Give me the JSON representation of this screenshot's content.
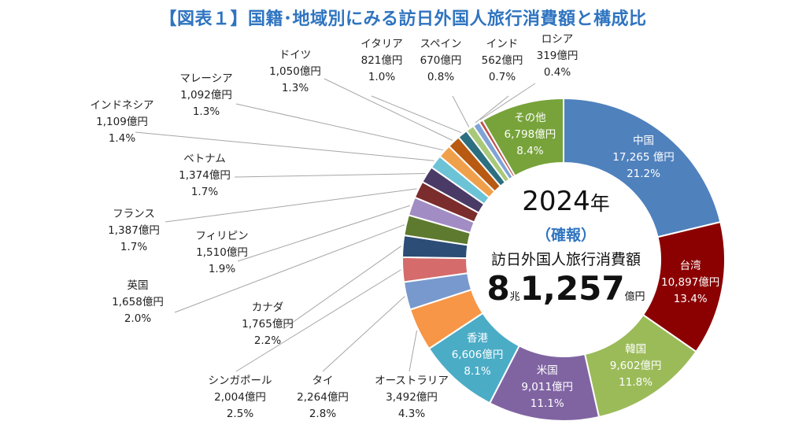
{
  "title": "【図表１】国籍･地域別にみる訪日外国人旅行消費額と構成比",
  "center": {
    "year": "2024",
    "year_unit": "年",
    "status": "（確報）",
    "label": "訪日外国人旅行消費額",
    "total_a": "8",
    "total_a_unit": "兆",
    "total_b": "1,257",
    "total_unit": "億円"
  },
  "chart_data": {
    "type": "pie",
    "title": "【図表１】国籍･地域別にみる訪日外国人旅行消費額と構成比",
    "style": "donut",
    "unit": "億円",
    "slices": [
      {
        "name": "中国",
        "value": 17265,
        "value_text": "17,265 億円",
        "share_text": "21.2%",
        "color": "#4f81bd",
        "inside": true
      },
      {
        "name": "台湾",
        "value": 10897,
        "value_text": "10,897億円",
        "share_text": "13.4%",
        "color": "#8b0000",
        "inside": true
      },
      {
        "name": "韓国",
        "value": 9602,
        "value_text": "9,602億円",
        "share_text": "11.8%",
        "color": "#9bbb59",
        "inside": true
      },
      {
        "name": "米国",
        "value": 9011,
        "value_text": "9,011億円",
        "share_text": "11.1%",
        "color": "#8064a2",
        "inside": true
      },
      {
        "name": "香港",
        "value": 6606,
        "value_text": "6,606億円",
        "share_text": "8.1%",
        "color": "#4bacc6",
        "inside": true
      },
      {
        "name": "オーストラリア",
        "value": 3492,
        "value_text": "3,492億円",
        "share_text": "4.3%",
        "color": "#f79646",
        "inside": false
      },
      {
        "name": "タイ",
        "value": 2264,
        "value_text": "2,264億円",
        "share_text": "2.8%",
        "color": "#7899cd",
        "inside": false
      },
      {
        "name": "シンガポール",
        "value": 2004,
        "value_text": "2,004億円",
        "share_text": "2.5%",
        "color": "#d56b6b",
        "inside": false
      },
      {
        "name": "カナダ",
        "value": 1765,
        "value_text": "1,765億円",
        "share_text": "2.2%",
        "color": "#2c4d75",
        "inside": false
      },
      {
        "name": "英国",
        "value": 1658,
        "value_text": "1,658億円",
        "share_text": "2.0%",
        "color": "#5e7a2f",
        "inside": false
      },
      {
        "name": "フィリピン",
        "value": 1510,
        "value_text": "1,510億円",
        "share_text": "1.9%",
        "color": "#a28cc4",
        "inside": false
      },
      {
        "name": "フランス",
        "value": 1387,
        "value_text": "1,387億円",
        "share_text": "1.7%",
        "color": "#7b2c2c",
        "inside": false
      },
      {
        "name": "ベトナム",
        "value": 1374,
        "value_text": "1,374億円",
        "share_text": "1.7%",
        "color": "#4a3a66",
        "inside": false
      },
      {
        "name": "インドネシア",
        "value": 1109,
        "value_text": "1,109億円",
        "share_text": "1.4%",
        "color": "#6cc3d6",
        "inside": false
      },
      {
        "name": "マレーシア",
        "value": 1092,
        "value_text": "1,092億円",
        "share_text": "1.3%",
        "color": "#f0a04b",
        "inside": false
      },
      {
        "name": "ドイツ",
        "value": 1050,
        "value_text": "1,050億円",
        "share_text": "1.3%",
        "color": "#b85a12",
        "inside": false
      },
      {
        "name": "イタリア",
        "value": 821,
        "value_text": "821億円",
        "share_text": "1.0%",
        "color": "#2b6f80",
        "inside": false
      },
      {
        "name": "スペイン",
        "value": 670,
        "value_text": "670億円",
        "share_text": "0.8%",
        "color": "#a9c97a",
        "inside": false
      },
      {
        "name": "インド",
        "value": 562,
        "value_text": "562億円",
        "share_text": "0.7%",
        "color": "#7fa3d6",
        "inside": false
      },
      {
        "name": "ロシア",
        "value": 319,
        "value_text": "319億円",
        "share_text": "0.4%",
        "color": "#c0504d",
        "inside": false
      },
      {
        "name": "その他",
        "value": 6798,
        "value_text": "6,798億円",
        "share_text": "8.4%",
        "color": "#77a33a",
        "inside": true
      }
    ]
  }
}
